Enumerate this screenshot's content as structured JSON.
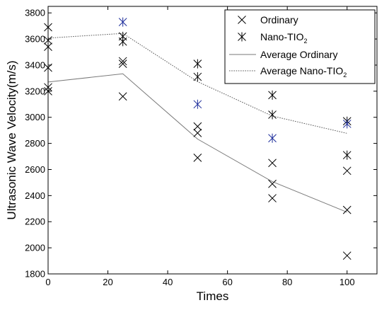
{
  "chart_data": {
    "type": "scatter",
    "xlabel": "Times",
    "ylabel": "Ultrasonic Wave Velocity(m/s)",
    "xlim": [
      0,
      110
    ],
    "ylim": [
      1800,
      3850
    ],
    "xticks": [
      0,
      20,
      40,
      60,
      80,
      100
    ],
    "yticks": [
      1800,
      2000,
      2200,
      2400,
      2600,
      2800,
      3000,
      3200,
      3400,
      3600,
      3800
    ],
    "grid": false,
    "legend_position": "top-right",
    "series": [
      {
        "name": "Ordinary",
        "kind": "scatter",
        "marker": "x",
        "color": "#000000",
        "points": [
          [
            0,
            3380
          ],
          [
            0,
            3230
          ],
          [
            0,
            3200
          ],
          [
            25,
            3430
          ],
          [
            25,
            3410
          ],
          [
            25,
            3160
          ],
          [
            50,
            2930
          ],
          [
            50,
            2880
          ],
          [
            50,
            2690
          ],
          [
            75,
            2650
          ],
          [
            75,
            2490
          ],
          [
            75,
            2380
          ],
          [
            100,
            2590
          ],
          [
            100,
            2290
          ],
          [
            100,
            1940
          ]
        ]
      },
      {
        "name": "Nano-TIO",
        "name_subscript": "2",
        "kind": "scatter",
        "marker": "asterisk",
        "color": "#000000",
        "highlight_color": "#1a2b9a",
        "points": [
          [
            0,
            3690,
            0
          ],
          [
            0,
            3590,
            0
          ],
          [
            0,
            3540,
            0
          ],
          [
            25,
            3730,
            1
          ],
          [
            25,
            3620,
            0
          ],
          [
            25,
            3580,
            0
          ],
          [
            50,
            3410,
            0
          ],
          [
            50,
            3310,
            0
          ],
          [
            50,
            3100,
            1
          ],
          [
            75,
            3170,
            0
          ],
          [
            75,
            3020,
            0
          ],
          [
            75,
            2840,
            1
          ],
          [
            100,
            2970,
            0
          ],
          [
            100,
            2950,
            1
          ],
          [
            100,
            2710,
            0
          ]
        ]
      },
      {
        "name": "Average Ordinary",
        "kind": "line",
        "style": "solid",
        "color": "#7a7a7a",
        "x": [
          0,
          25,
          50,
          75,
          100
        ],
        "y": [
          3270,
          3333,
          2833,
          2507,
          2273
        ]
      },
      {
        "name": "Average Nano-TIO",
        "name_subscript": "2",
        "kind": "line",
        "style": "dotted",
        "color": "#5a5a5a",
        "x": [
          0,
          25,
          50,
          75,
          100
        ],
        "y": [
          3607,
          3643,
          3273,
          3010,
          2877
        ]
      }
    ]
  }
}
